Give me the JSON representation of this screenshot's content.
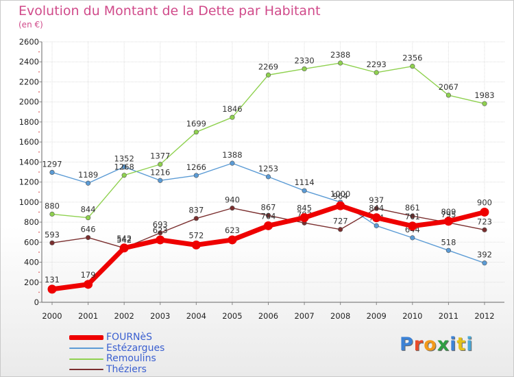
{
  "title": "Evolution du Montant de la Dette par Habitant",
  "subtitle": "(en €)",
  "logo": "Proxiti",
  "logo_colors": [
    "#3c82d6",
    "#e94b2a",
    "#f29a1b",
    "#2f9e43",
    "#3c82d6",
    "#e3c11a",
    "#49a8d8"
  ],
  "chart_data": {
    "type": "line",
    "x": [
      "2000",
      "2001",
      "2002",
      "2003",
      "2004",
      "2005",
      "2006",
      "2007",
      "2008",
      "2009",
      "2010",
      "2011",
      "2012"
    ],
    "ylim": [
      0,
      2600
    ],
    "yticks": [
      "0",
      "200",
      "400",
      "600",
      "800",
      "1000",
      "1200",
      "1400",
      "1600",
      "1800",
      "2000",
      "2200",
      "2400",
      "2600"
    ],
    "grid": true,
    "legend_position": "bottom-left",
    "series": [
      {
        "name": "Estézargues",
        "color": "#5b9bd5",
        "values": [
          1297,
          1189,
          1352,
          1216,
          1266,
          1388,
          1253,
          1114,
          1000,
          764,
          644,
          518,
          392
        ],
        "labels": [
          "1297",
          "1189",
          "1352",
          "1216",
          "1266",
          "1388",
          "1253",
          "1114",
          "1000",
          "764",
          "644",
          "518",
          "392"
        ]
      },
      {
        "name": "Remoulins",
        "color": "#8fd14f",
        "values": [
          880,
          844,
          1268,
          1377,
          1699,
          1846,
          2269,
          2330,
          2388,
          2293,
          2356,
          2067,
          1983
        ],
        "labels": [
          "880",
          "844",
          "1268",
          "1377",
          "1699",
          "1846",
          "2269",
          "2330",
          "2388",
          "2293",
          "2356",
          "2067",
          "1983"
        ]
      },
      {
        "name": "Théziers",
        "color": "#7a2e2e",
        "values": [
          593,
          646,
          542,
          693,
          837,
          940,
          867,
          792,
          727,
          937,
          861,
          795,
          723
        ],
        "labels": [
          "593",
          "646",
          "542",
          "693",
          "837",
          "940",
          "867",
          "792",
          "727",
          "937",
          "861",
          "795",
          "723"
        ]
      },
      {
        "name": "FOURNèS",
        "color": "#ee0000",
        "values": [
          131,
          179,
          542,
          623,
          572,
          623,
          764,
          845,
          964,
          844,
          761,
          809,
          900
        ],
        "labels": [
          "131",
          "179",
          "542",
          "623",
          "572",
          "623",
          "764",
          "845",
          "964",
          "844",
          "761",
          "809",
          "900"
        ]
      }
    ]
  }
}
